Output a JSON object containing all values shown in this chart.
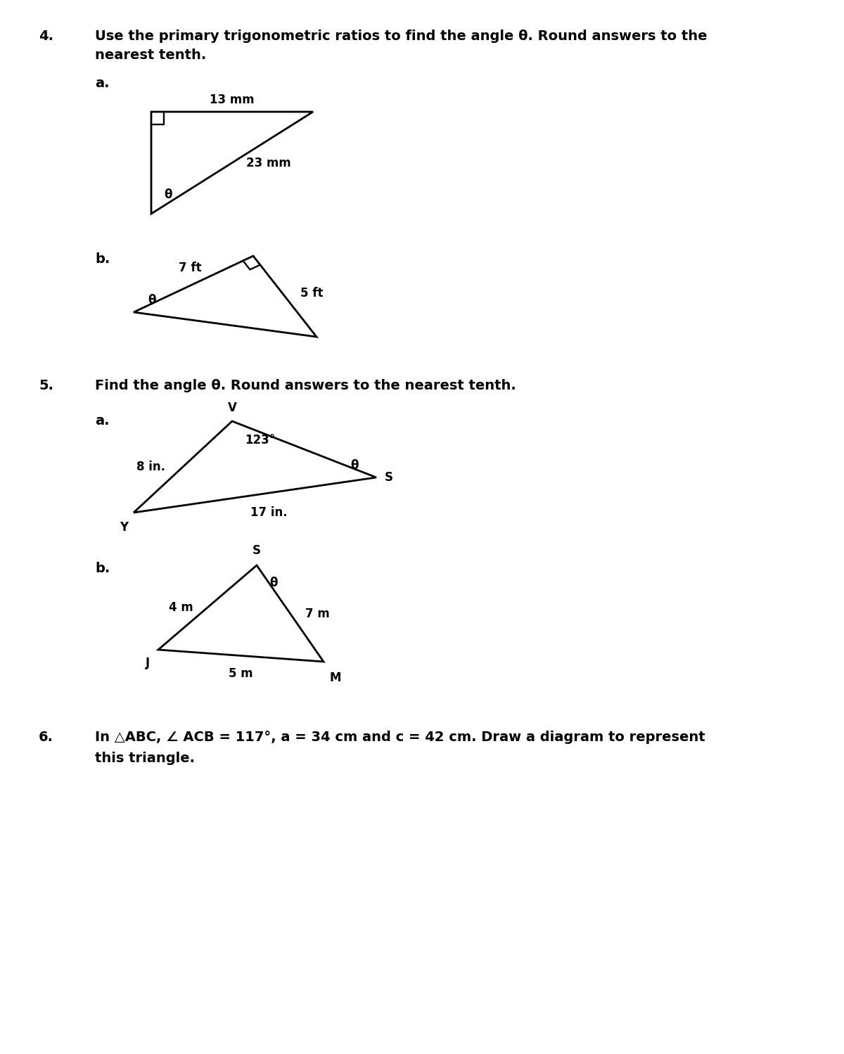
{
  "background_color": "#ffffff",
  "page_width": 12.0,
  "page_height": 14.99,
  "q4_number": "4.",
  "q4_text_line1": "Use the primary trigonometric ratios to find the angle θ. Round answers to the",
  "q4_text_line2": "nearest tenth.",
  "q4a_label": "a.",
  "q4a_top_label": "13 mm",
  "q4a_hyp_label": "23 mm",
  "q4a_theta_label": "θ",
  "q4b_label": "b.",
  "q4b_left_label": "7 ft",
  "q4b_right_label": "5 ft",
  "q4b_theta_label": "θ",
  "q5_number": "5.",
  "q5_text": "Find the angle θ. Round answers to the nearest tenth.",
  "q5a_label": "a.",
  "q5a_V": "V",
  "q5a_angle": "123°",
  "q5a_left_side": "8 in.",
  "q5a_bottom": "17 in.",
  "q5a_theta": "θ",
  "q5a_S": "S",
  "q5a_Y": "Y",
  "q5b_label": "b.",
  "q5b_S": "S",
  "q5b_theta": "θ",
  "q5b_left": "4 m",
  "q5b_right": "7 m",
  "q5b_bottom": "5 m",
  "q5b_J": "J",
  "q5b_M": "M",
  "q6_number": "6.",
  "q6_text_line1": "In △ABC, ∠ ACB = 117°, a = 34 cm and c = 42 cm. Draw a diagram to represent",
  "q6_text_line2": "this triangle.",
  "text_color": "#000000",
  "line_color": "#000000",
  "line_width": 2.0,
  "font_size_number": 14,
  "font_size_label": 14,
  "font_size_text": 14,
  "font_size_diagram": 12
}
